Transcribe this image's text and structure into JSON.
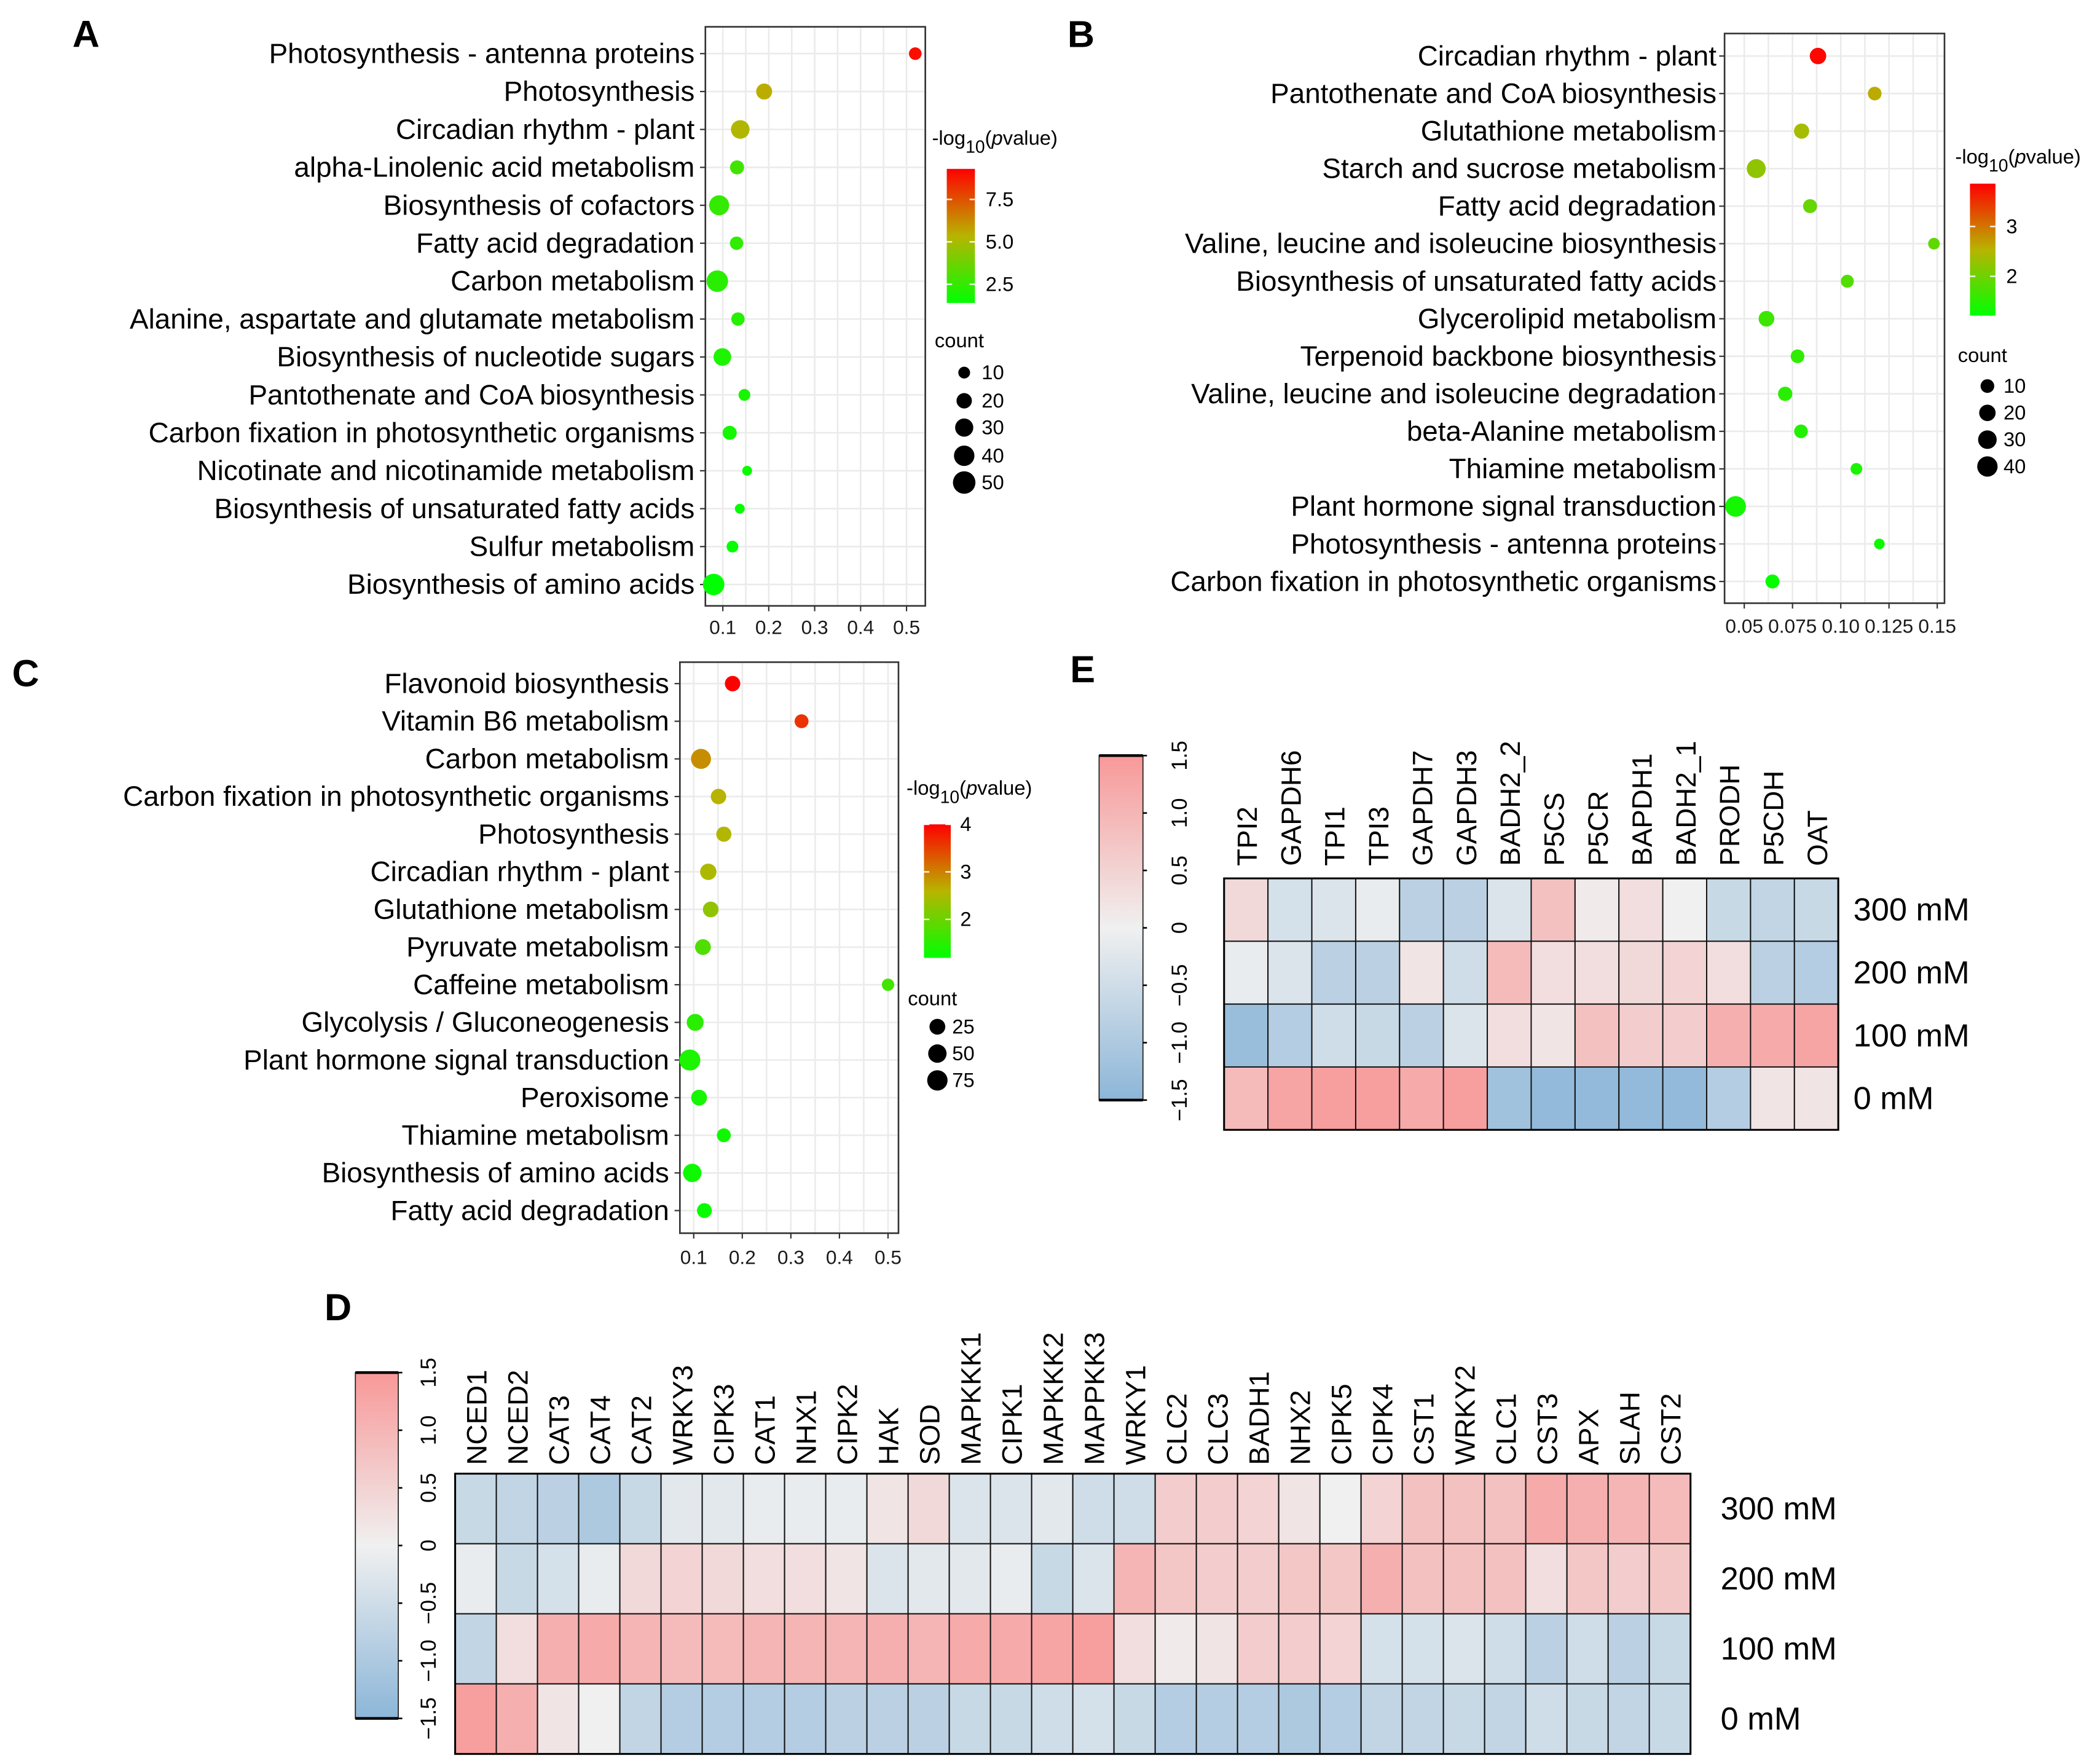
{
  "panels": {
    "A": "A",
    "B": "B",
    "C": "C",
    "D": "D",
    "E": "E"
  },
  "chart_data": [
    {
      "id": "A",
      "type": "scatter",
      "xticks": [
        0.1,
        0.2,
        0.3,
        0.4,
        0.5
      ],
      "xtick_labels": [
        "0.1",
        "0.2",
        "0.3",
        "0.4",
        "0.5"
      ],
      "xlim": [
        0.062,
        0.541
      ],
      "grid": true,
      "color_legend": {
        "title_parts": [
          "-log",
          "10",
          "(",
          "p",
          "value)"
        ],
        "range": [
          1.4,
          9.3
        ],
        "ticks": [
          2.5,
          5.0,
          7.5
        ],
        "tick_labels": [
          "2.5",
          "5.0",
          "7.5"
        ],
        "low_color": "#00ff00",
        "mid_color": "#b8b400",
        "high_color": "#ff0000"
      },
      "size_legend": {
        "title": "count",
        "values": [
          10,
          20,
          30,
          40,
          50
        ],
        "labels": [
          "10",
          "20",
          "30",
          "40",
          "50"
        ]
      },
      "points": [
        {
          "term": "Photosynthesis - antenna proteins",
          "x": 0.519,
          "count": 12,
          "neglog10p": 9.0
        },
        {
          "term": "Photosynthesis",
          "x": 0.19,
          "count": 22,
          "neglog10p": 5.5
        },
        {
          "term": "Circadian rhythm - plant",
          "x": 0.138,
          "count": 32,
          "neglog10p": 5.2
        },
        {
          "term": "alpha-Linolenic acid metabolism",
          "x": 0.131,
          "count": 16,
          "neglog10p": 2.8
        },
        {
          "term": "Biosynthesis of cofactors",
          "x": 0.092,
          "count": 38,
          "neglog10p": 2.5
        },
        {
          "term": "Fatty acid degradation",
          "x": 0.13,
          "count": 14,
          "neglog10p": 2.4
        },
        {
          "term": "Carbon metabolism",
          "x": 0.088,
          "count": 45,
          "neglog10p": 2.3
        },
        {
          "term": "Alanine, aspartate and glutamate metabolism",
          "x": 0.133,
          "count": 14,
          "neglog10p": 2.2
        },
        {
          "term": "Biosynthesis of nucleotide sugars",
          "x": 0.099,
          "count": 28,
          "neglog10p": 2.0
        },
        {
          "term": "Pantothenate and CoA biosynthesis",
          "x": 0.147,
          "count": 10,
          "neglog10p": 1.9
        },
        {
          "term": "Carbon fixation in photosynthetic organisms",
          "x": 0.115,
          "count": 16,
          "neglog10p": 1.8
        },
        {
          "term": "Nicotinate and nicotinamide metabolism",
          "x": 0.153,
          "count": 6,
          "neglog10p": 1.6
        },
        {
          "term": "Biosynthesis of unsaturated fatty acids",
          "x": 0.137,
          "count": 6,
          "neglog10p": 1.5
        },
        {
          "term": "Sulfur metabolism",
          "x": 0.121,
          "count": 10,
          "neglog10p": 1.5
        },
        {
          "term": "Biosynthesis of amino acids",
          "x": 0.08,
          "count": 45,
          "neglog10p": 1.4
        }
      ]
    },
    {
      "id": "B",
      "type": "scatter",
      "xticks": [
        0.05,
        0.075,
        0.1,
        0.125,
        0.15
      ],
      "xtick_labels": [
        "0.05",
        "0.075",
        "0.10",
        "0.125",
        "0.15"
      ],
      "xlim": [
        0.04,
        0.154
      ],
      "grid": true,
      "color_legend": {
        "title_parts": [
          "-log",
          "10",
          "(",
          "p",
          "value)"
        ],
        "range": [
          1.21,
          3.86
        ],
        "ticks": [
          2,
          3
        ],
        "tick_labels": [
          "2",
          "3"
        ],
        "low_color": "#00ff00",
        "mid_color": "#b8b400",
        "high_color": "#ff0000"
      },
      "size_legend": {
        "title": "count",
        "values": [
          10,
          20,
          30,
          40
        ],
        "labels": [
          "10",
          "20",
          "30",
          "40"
        ]
      },
      "points": [
        {
          "term": "Circadian rhythm - plant",
          "x": 0.0882,
          "count": 20,
          "neglog10p": 3.8
        },
        {
          "term": "Pantothenate and CoA biosynthesis",
          "x": 0.1176,
          "count": 10,
          "neglog10p": 2.6
        },
        {
          "term": "Glutathione metabolism",
          "x": 0.0797,
          "count": 15,
          "neglog10p": 2.4
        },
        {
          "term": "Starch and sucrose metabolism",
          "x": 0.0562,
          "count": 32,
          "neglog10p": 2.25
        },
        {
          "term": "Fatty acid degradation",
          "x": 0.0841,
          "count": 11,
          "neglog10p": 1.95
        },
        {
          "term": "Valine, leucine and isoleucine biosynthesis",
          "x": 0.1483,
          "count": 5,
          "neglog10p": 1.9
        },
        {
          "term": "Biosynthesis of unsaturated fatty acids",
          "x": 0.1034,
          "count": 8,
          "neglog10p": 1.8
        },
        {
          "term": "Glycerolipid metabolism",
          "x": 0.0615,
          "count": 17,
          "neglog10p": 1.65
        },
        {
          "term": "Terpenoid backbone biosynthesis",
          "x": 0.0776,
          "count": 10,
          "neglog10p": 1.55
        },
        {
          "term": "Valine, leucine and isoleucine degradation",
          "x": 0.0712,
          "count": 12,
          "neglog10p": 1.5
        },
        {
          "term": "beta-Alanine metabolism",
          "x": 0.0794,
          "count": 10,
          "neglog10p": 1.45
        },
        {
          "term": "Thiamine metabolism",
          "x": 0.1081,
          "count": 5,
          "neglog10p": 1.4
        },
        {
          "term": "Plant hormone signal transduction",
          "x": 0.0455,
          "count": 42,
          "neglog10p": 1.35
        },
        {
          "term": "Photosynthesis - antenna proteins",
          "x": 0.12,
          "count": 3,
          "neglog10p": 1.3
        },
        {
          "term": "Carbon fixation in photosynthetic organisms",
          "x": 0.0646,
          "count": 11,
          "neglog10p": 1.25
        }
      ]
    },
    {
      "id": "C",
      "type": "scatter",
      "xticks": [
        0.1,
        0.2,
        0.3,
        0.4,
        0.5
      ],
      "xtick_labels": [
        "0.1",
        "0.2",
        "0.3",
        "0.4",
        "0.5"
      ],
      "xlim": [
        0.072,
        0.521
      ],
      "grid": true,
      "color_legend": {
        "title_parts": [
          "-log",
          "10",
          "(",
          "p",
          "value)"
        ],
        "range": [
          1.19,
          4.0
        ],
        "ticks": [
          2,
          3,
          4
        ],
        "tick_labels": [
          "2",
          "3",
          "4"
        ],
        "low_color": "#00ff00",
        "mid_color": "#b8b400",
        "high_color": "#ff0000"
      },
      "size_legend": {
        "title": "count",
        "values": [
          25,
          50,
          75
        ],
        "labels": [
          "25",
          "50",
          "75"
        ]
      },
      "points": [
        {
          "term": "Flavonoid biosynthesis",
          "x": 0.18,
          "count": 22,
          "neglog10p": 4.0
        },
        {
          "term": "Vitamin B6 metabolism",
          "x": 0.322,
          "count": 12,
          "neglog10p": 3.6
        },
        {
          "term": "Carbon metabolism",
          "x": 0.115,
          "count": 70,
          "neglog10p": 2.9
        },
        {
          "term": "Carbon fixation in photosynthetic organisms",
          "x": 0.151,
          "count": 22,
          "neglog10p": 2.6
        },
        {
          "term": "Photosynthesis",
          "x": 0.162,
          "count": 20,
          "neglog10p": 2.55
        },
        {
          "term": "Circadian rhythm - plant",
          "x": 0.13,
          "count": 30,
          "neglog10p": 2.5
        },
        {
          "term": "Glutathione metabolism",
          "x": 0.135,
          "count": 24,
          "neglog10p": 2.3
        },
        {
          "term": "Pyruvate metabolism",
          "x": 0.119,
          "count": 25,
          "neglog10p": 1.8
        },
        {
          "term": "Caffeine metabolism",
          "x": 0.5,
          "count": 5,
          "neglog10p": 1.7
        },
        {
          "term": "Glycolysis / Gluconeogenesis",
          "x": 0.103,
          "count": 35,
          "neglog10p": 1.5
        },
        {
          "term": "Plant hormone signal transduction",
          "x": 0.092,
          "count": 85,
          "neglog10p": 1.4
        },
        {
          "term": "Peroxisome",
          "x": 0.111,
          "count": 25,
          "neglog10p": 1.35
        },
        {
          "term": "Thiamine metabolism",
          "x": 0.162,
          "count": 12,
          "neglog10p": 1.3
        },
        {
          "term": "Biosynthesis of amino acids",
          "x": 0.097,
          "count": 50,
          "neglog10p": 1.3
        },
        {
          "term": "Fatty acid degradation",
          "x": 0.122,
          "count": 18,
          "neglog10p": 1.25
        }
      ]
    },
    {
      "id": "D",
      "type": "heatmap",
      "columns": [
        "NCED1",
        "NCED2",
        "CAT3",
        "CAT4",
        "CAT2",
        "WRKY3",
        "CIPK3",
        "CAT1",
        "NHX1",
        "CIPK2",
        "HAK",
        "SOD",
        "MAPKKK1",
        "CIPK1",
        "MAPKKK2",
        "MAPPKK3",
        "WRKY1",
        "CLC2",
        "CLC3",
        "BADH1",
        "NHX2",
        "CIPK5",
        "CIPK4",
        "CST1",
        "WRKY2",
        "CLC1",
        "CST3",
        "APX",
        "SLAH",
        "CST2"
      ],
      "rows": [
        "300 mM",
        "200 mM",
        "100 mM",
        "0 mM"
      ],
      "values": [
        [
          -0.6,
          -0.7,
          -0.8,
          -1.0,
          -0.6,
          -0.2,
          -0.2,
          -0.1,
          -0.1,
          -0.1,
          0.2,
          0.4,
          -0.3,
          -0.3,
          -0.2,
          -0.5,
          -0.5,
          0.6,
          0.6,
          0.5,
          0.2,
          0.0,
          0.5,
          0.8,
          0.8,
          0.8,
          1.2,
          1.1,
          1.0,
          0.9
        ],
        [
          -0.1,
          -0.6,
          -0.4,
          -0.1,
          0.4,
          0.5,
          0.4,
          0.3,
          0.3,
          0.2,
          -0.3,
          -0.2,
          -0.2,
          -0.1,
          -0.6,
          -0.3,
          1.0,
          0.7,
          0.6,
          0.6,
          0.7,
          0.7,
          1.1,
          0.8,
          0.8,
          0.8,
          0.3,
          0.7,
          0.6,
          0.7
        ],
        [
          -0.7,
          0.3,
          1.1,
          1.2,
          1.0,
          0.9,
          0.9,
          1.0,
          1.0,
          1.0,
          1.1,
          1.0,
          1.2,
          1.2,
          1.3,
          1.4,
          0.3,
          0.1,
          0.2,
          0.6,
          0.6,
          0.5,
          -0.4,
          -0.4,
          -0.3,
          -0.5,
          -0.8,
          -0.5,
          -0.8,
          -0.6
        ],
        [
          1.4,
          1.1,
          0.2,
          0.0,
          -0.7,
          -0.9,
          -0.9,
          -0.9,
          -0.9,
          -0.8,
          -0.8,
          -0.8,
          -0.6,
          -0.6,
          -0.5,
          -0.4,
          -0.6,
          -0.9,
          -0.9,
          -0.9,
          -1.0,
          -0.9,
          -0.7,
          -0.7,
          -0.6,
          -0.7,
          -0.5,
          -0.6,
          -0.7,
          -0.6
        ]
      ],
      "colorbar": {
        "range": [
          -1.5,
          1.5
        ],
        "ticks": [
          -1.5,
          -1.0,
          -0.5,
          0,
          0.5,
          1.0,
          1.5
        ],
        "tick_labels": [
          "−1.5",
          "−1.0",
          "−0.5",
          "0",
          "0.5",
          "1.0",
          "1.5"
        ],
        "low_color": "#8cb6d8",
        "mid_color": "#f0f0f0",
        "high_color": "#f89898"
      }
    },
    {
      "id": "E",
      "type": "heatmap",
      "columns": [
        "TPI2",
        "GAPDH6",
        "TPI1",
        "TPI3",
        "GAPDH7",
        "GAPDH3",
        "BADH2_2",
        "P5CS",
        "P5CR",
        "BAPDH1",
        "BADH2_1",
        "PRODH",
        "P5CDH",
        "OAT"
      ],
      "rows": [
        "300 mM",
        "200 mM",
        "100 mM",
        "0 mM"
      ],
      "values": [
        [
          0.4,
          -0.4,
          -0.3,
          -0.1,
          -0.8,
          -0.8,
          -0.3,
          0.8,
          0.1,
          0.3,
          0.0,
          -0.6,
          -0.7,
          -0.6
        ],
        [
          -0.1,
          -0.3,
          -0.8,
          -0.8,
          0.2,
          -0.5,
          0.9,
          0.3,
          0.3,
          0.4,
          0.5,
          0.3,
          -0.8,
          -0.9
        ],
        [
          -1.3,
          -0.9,
          -0.5,
          -0.6,
          -0.8,
          -0.3,
          0.3,
          0.2,
          0.8,
          0.6,
          0.6,
          1.1,
          1.2,
          1.3
        ],
        [
          0.9,
          1.3,
          1.4,
          1.4,
          1.2,
          1.4,
          -1.2,
          -1.4,
          -1.4,
          -1.4,
          -1.4,
          -0.9,
          0.2,
          0.2
        ]
      ],
      "colorbar": {
        "range": [
          -1.5,
          1.5
        ],
        "ticks": [
          -1.5,
          -1.0,
          -0.5,
          0,
          0.5,
          1.0,
          1.5
        ],
        "tick_labels": [
          "−1.5",
          "−1.0",
          "−0.5",
          "0",
          "0.5",
          "1.0",
          "1.5"
        ],
        "low_color": "#8cb6d8",
        "mid_color": "#f0f0f0",
        "high_color": "#f89898"
      }
    }
  ]
}
